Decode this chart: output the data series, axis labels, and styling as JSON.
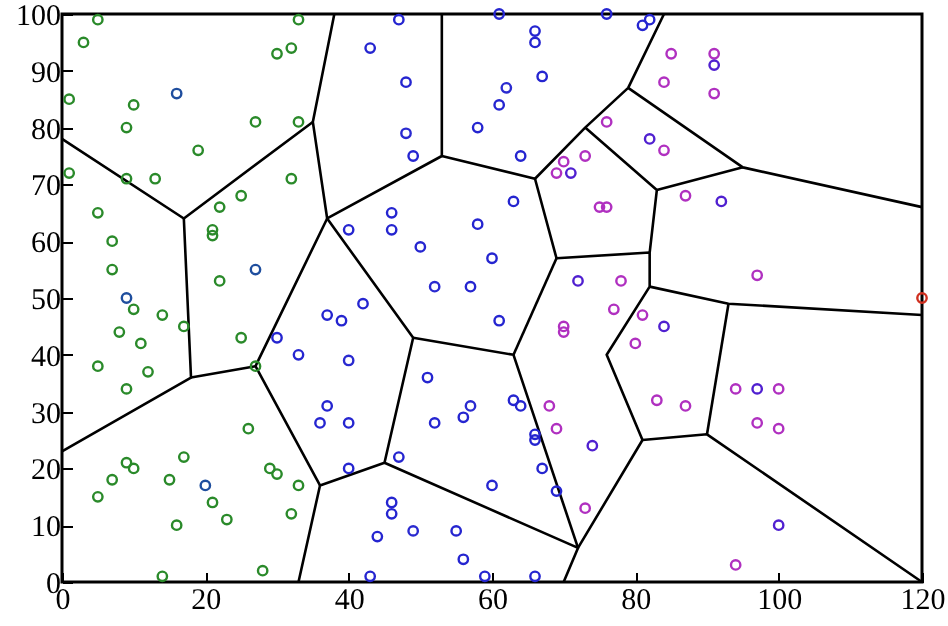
{
  "chart_data": {
    "type": "scatter",
    "xlim": [
      0,
      120
    ],
    "xticks": [
      0,
      20,
      40,
      60,
      80,
      100,
      120
    ],
    "ylim": [
      0,
      100
    ],
    "yticks": [
      0,
      10,
      20,
      30,
      40,
      50,
      60,
      70,
      80,
      90,
      100
    ],
    "marker": "circle",
    "line_style": "solid",
    "series": [
      {
        "color": "#2a8a2a",
        "x": [
          5,
          3,
          33,
          30,
          32,
          1,
          10,
          9,
          27,
          33,
          19,
          1,
          9,
          13,
          32,
          25,
          22,
          5,
          21,
          21,
          7,
          7,
          22,
          10,
          14,
          17,
          8,
          11,
          5,
          12,
          9,
          25,
          27,
          26,
          17,
          9,
          10,
          7,
          15,
          5,
          21,
          23,
          16,
          29,
          30,
          33,
          32,
          14,
          28
        ],
        "values": [
          99,
          95,
          99,
          93,
          94,
          85,
          84,
          80,
          81,
          81,
          76,
          72,
          71,
          71,
          71,
          68,
          66,
          65,
          62,
          61,
          60,
          55,
          53,
          48,
          47,
          45,
          44,
          42,
          38,
          37,
          34,
          43,
          38,
          27,
          22,
          21,
          20,
          18,
          18,
          15,
          14,
          11,
          10,
          20,
          19,
          17,
          12,
          1,
          2
        ]
      },
      {
        "color": "#2525d0",
        "x": [
          47,
          43,
          61,
          76,
          66,
          66,
          67,
          61,
          48,
          49,
          58,
          64,
          63,
          46,
          46,
          40,
          58,
          50,
          60,
          57,
          42,
          81,
          82,
          39,
          40,
          40,
          61,
          51,
          56,
          52,
          63,
          64,
          66,
          66,
          47,
          67,
          60,
          69,
          46,
          46,
          44,
          55,
          56,
          43,
          59,
          66,
          30,
          33,
          37,
          37,
          36
        ],
        "values": [
          99,
          94,
          100,
          100,
          97,
          95,
          89,
          84,
          88,
          75,
          80,
          75,
          67,
          65,
          62,
          62,
          63,
          59,
          57,
          52,
          49,
          98,
          99,
          46,
          28,
          20,
          46,
          36,
          29,
          28,
          32,
          31,
          26,
          25,
          22,
          20,
          17,
          16,
          14,
          12,
          8,
          9,
          4,
          1,
          1,
          1,
          43,
          40,
          47,
          31,
          28
        ]
      },
      {
        "color": "#b030c0",
        "x": [
          76,
          70,
          69,
          73,
          75,
          76,
          78,
          77,
          85,
          91,
          84,
          91,
          84,
          87,
          97,
          81,
          80,
          83,
          87,
          94,
          100,
          97,
          100,
          94,
          70,
          70,
          68,
          69,
          73
        ],
        "values": [
          81,
          74,
          72,
          75,
          66,
          66,
          53,
          48,
          93,
          93,
          88,
          86,
          76,
          68,
          54,
          47,
          42,
          32,
          31,
          34,
          34,
          28,
          27,
          3,
          45,
          44,
          31,
          27,
          13
        ]
      },
      {
        "color": "#1f4e9e",
        "x": [
          16,
          27,
          9,
          20
        ],
        "values": [
          86,
          55,
          50,
          17
        ]
      },
      {
        "color": "#2a2ad0",
        "x": [
          62,
          48,
          57,
          40,
          52,
          49
        ],
        "values": [
          87,
          79,
          31,
          39,
          52,
          9
        ]
      },
      {
        "color": "#5020d0",
        "x": [
          71,
          72,
          91,
          82,
          92,
          84,
          97,
          100,
          74
        ],
        "values": [
          72,
          53,
          91,
          78,
          67,
          45,
          34,
          10,
          24
        ]
      },
      {
        "color": "#d03020",
        "x": [
          120
        ],
        "values": [
          50
        ]
      },
      {
        "type": "line",
        "marker": "none",
        "color": "#000000",
        "x": [
          38,
          35,
          37,
          49,
          45,
          36,
          33
        ],
        "values": [
          100,
          81,
          64,
          43,
          21,
          17,
          0
        ]
      },
      {
        "type": "line",
        "marker": "none",
        "color": "#000000",
        "x": [
          0,
          17,
          35
        ],
        "values": [
          78,
          64,
          81
        ]
      },
      {
        "type": "line",
        "marker": "none",
        "color": "#000000",
        "x": [
          0,
          18,
          17
        ],
        "values": [
          23,
          36,
          64
        ]
      },
      {
        "type": "line",
        "marker": "none",
        "color": "#000000",
        "x": [
          18,
          27,
          36
        ],
        "values": [
          36,
          38,
          17
        ]
      },
      {
        "type": "line",
        "marker": "none",
        "color": "#000000",
        "x": [
          27,
          37,
          53,
          53
        ],
        "values": [
          38,
          64,
          75,
          100
        ]
      },
      {
        "type": "line",
        "marker": "none",
        "color": "#000000",
        "x": [
          53,
          66,
          73,
          79,
          84
        ],
        "values": [
          75,
          71,
          80,
          87,
          100
        ]
      },
      {
        "type": "line",
        "marker": "none",
        "color": "#000000",
        "x": [
          66,
          69,
          82,
          82,
          76,
          81,
          72,
          70
        ],
        "values": [
          71,
          57,
          58,
          52,
          40,
          25,
          6,
          0
        ]
      },
      {
        "type": "line",
        "marker": "none",
        "color": "#000000",
        "x": [
          73,
          83,
          82
        ],
        "values": [
          80,
          69,
          58
        ]
      },
      {
        "type": "line",
        "marker": "none",
        "color": "#000000",
        "x": [
          79,
          95,
          120
        ],
        "values": [
          87,
          73,
          66
        ]
      },
      {
        "type": "line",
        "marker": "none",
        "color": "#000000",
        "x": [
          95,
          83
        ],
        "values": [
          73,
          69
        ]
      },
      {
        "type": "line",
        "marker": "none",
        "color": "#000000",
        "x": [
          82,
          93,
          120
        ],
        "values": [
          52,
          49,
          47
        ]
      },
      {
        "type": "line",
        "marker": "none",
        "color": "#000000",
        "x": [
          81,
          90,
          120
        ],
        "values": [
          25,
          26,
          0
        ]
      },
      {
        "type": "line",
        "marker": "none",
        "color": "#000000",
        "x": [
          90,
          93
        ],
        "values": [
          26,
          49
        ]
      },
      {
        "type": "line",
        "marker": "none",
        "color": "#000000",
        "x": [
          45,
          72,
          63,
          49
        ],
        "values": [
          21,
          6,
          40,
          43
        ]
      },
      {
        "type": "line",
        "marker": "none",
        "color": "#000000",
        "x": [
          63,
          69
        ],
        "values": [
          40,
          57
        ]
      }
    ]
  }
}
